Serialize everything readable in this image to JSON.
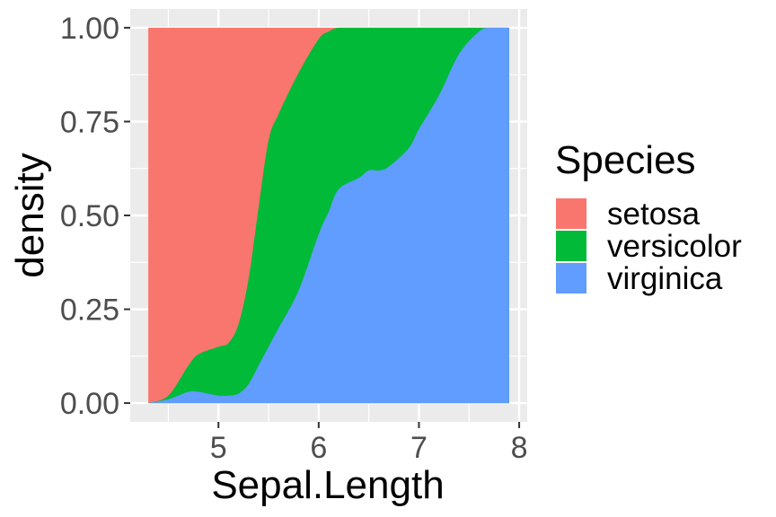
{
  "chart_data": {
    "type": "area",
    "subtype": "stacked-conditional-density",
    "title": "",
    "xlabel": "Sepal.Length",
    "ylabel": "density",
    "xlim": [
      4.3,
      7.9
    ],
    "ylim": [
      0,
      1
    ],
    "x_ticks": [
      5,
      6,
      7,
      8
    ],
    "y_ticks": [
      0,
      0.25,
      0.5,
      0.75,
      1
    ],
    "x_tick_labels": [
      "5",
      "6",
      "7",
      "8"
    ],
    "y_tick_labels": [
      "0.00",
      "0.25",
      "0.50",
      "0.75",
      "1.00"
    ],
    "grid": true,
    "legend": {
      "title": "Species",
      "position": "right"
    },
    "x": [
      4.3,
      4.5,
      4.7,
      4.8,
      5.0,
      5.1,
      5.2,
      5.3,
      5.4,
      5.5,
      5.6,
      5.8,
      6.0,
      6.1,
      6.2,
      6.4,
      6.5,
      6.6,
      6.7,
      6.9,
      7.0,
      7.2,
      7.4,
      7.6,
      7.7,
      7.9
    ],
    "series": [
      {
        "name": "virginica",
        "color": "#619CFF",
        "cumulative_top": [
          0.0,
          0.01,
          0.03,
          0.03,
          0.02,
          0.02,
          0.025,
          0.05,
          0.1,
          0.15,
          0.2,
          0.3,
          0.45,
          0.51,
          0.57,
          0.6,
          0.62,
          0.62,
          0.63,
          0.68,
          0.73,
          0.82,
          0.93,
          0.99,
          1.0,
          1.0
        ]
      },
      {
        "name": "versicolor",
        "color": "#00BA38",
        "cumulative_top": [
          0.0,
          0.02,
          0.1,
          0.13,
          0.15,
          0.16,
          0.21,
          0.33,
          0.52,
          0.7,
          0.77,
          0.88,
          0.97,
          0.99,
          1.0,
          1.0,
          1.0,
          1.0,
          1.0,
          1.0,
          1.0,
          1.0,
          1.0,
          1.0,
          1.0,
          1.0
        ]
      },
      {
        "name": "setosa",
        "color": "#F8766D",
        "cumulative_top": [
          1.0,
          1.0,
          1.0,
          1.0,
          1.0,
          1.0,
          1.0,
          1.0,
          1.0,
          1.0,
          1.0,
          1.0,
          1.0,
          1.0,
          1.0,
          1.0,
          1.0,
          1.0,
          1.0,
          1.0,
          1.0,
          1.0,
          1.0,
          1.0,
          1.0,
          1.0
        ]
      }
    ],
    "legend_order": [
      "setosa",
      "versicolor",
      "virginica"
    ]
  }
}
